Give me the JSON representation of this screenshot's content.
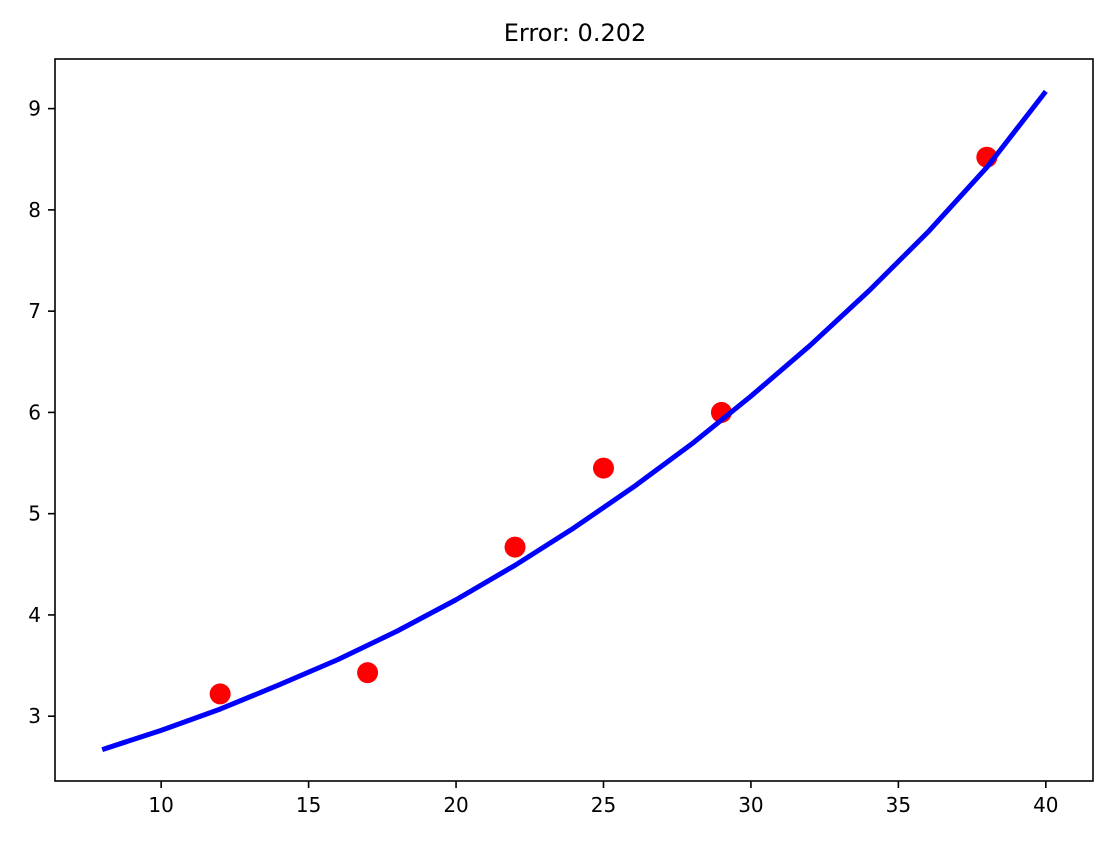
{
  "chart_data": {
    "type": "scatter",
    "title": "Error: 0.202",
    "xlabel": "",
    "ylabel": "",
    "xlim": [
      6.4,
      41.6
    ],
    "ylim": [
      2.36,
      9.49
    ],
    "xticks": [
      10,
      15,
      20,
      25,
      30,
      35,
      40
    ],
    "yticks": [
      3,
      4,
      5,
      6,
      7,
      8,
      9
    ],
    "grid": false,
    "series": [
      {
        "kind": "scatter",
        "color": "#ff0000",
        "x": [
          12,
          17,
          22,
          25,
          29,
          38
        ],
        "y": [
          3.22,
          3.43,
          4.67,
          5.45,
          6.0,
          8.52
        ]
      },
      {
        "kind": "line",
        "color": "#0000ff",
        "x": [
          8,
          10,
          12,
          14,
          16,
          18,
          20,
          22,
          24,
          26,
          28,
          30,
          32,
          34,
          36,
          38,
          40
        ],
        "y": [
          2.67,
          2.86,
          3.07,
          3.31,
          3.56,
          3.84,
          4.15,
          4.49,
          4.86,
          5.26,
          5.69,
          6.16,
          6.66,
          7.2,
          7.78,
          8.42,
          9.17
        ]
      }
    ]
  }
}
